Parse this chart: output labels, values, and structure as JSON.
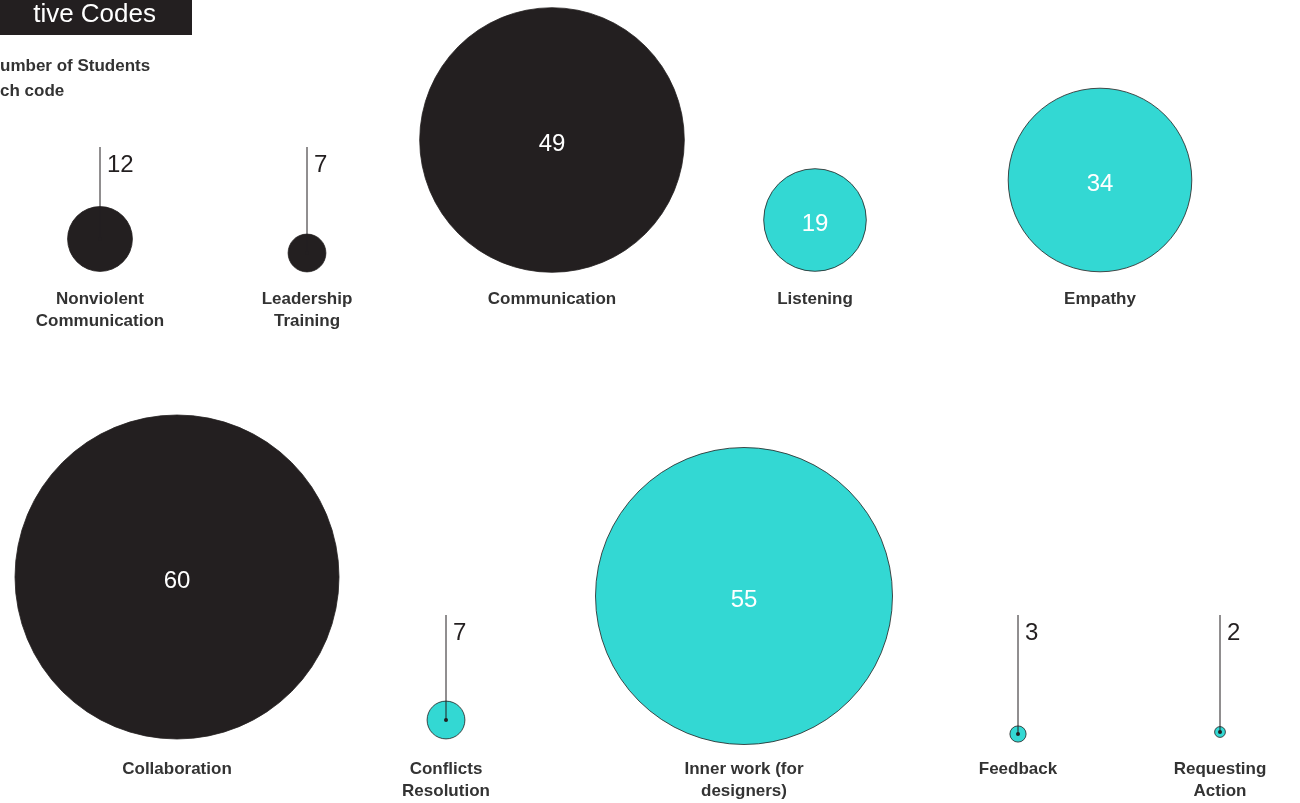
{
  "chart_data": {
    "type": "other",
    "title": "tive Codes",
    "subtitle": "umber of Students\nch code",
    "categories": [
      "Nonviolent Communication",
      "Leadership Training",
      "Communication",
      "Listening",
      "Empathy",
      "Collaboration",
      "Conflicts Resolution",
      "Inner work (for designers)",
      "Feedback",
      "Requesting Action"
    ],
    "values": [
      12,
      7,
      49,
      19,
      34,
      60,
      7,
      55,
      3,
      2
    ],
    "colors": [
      "#231f20",
      "#231f20",
      "#231f20",
      "#33d8d3",
      "#33d8d3",
      "#231f20",
      "#33d8d3",
      "#33d8d3",
      "#33d8d3",
      "#33d8d3"
    ],
    "data_labels": true
  }
}
